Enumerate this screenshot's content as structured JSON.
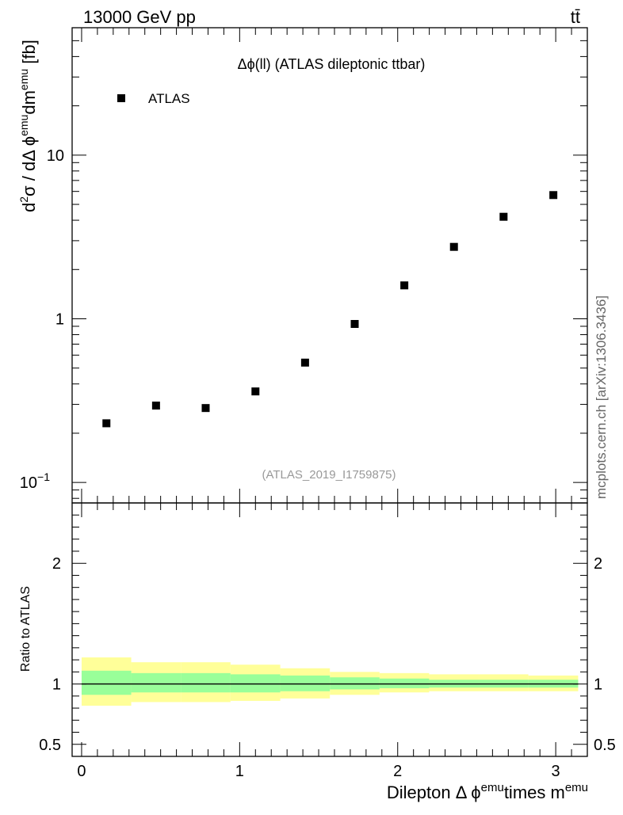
{
  "header": {
    "energy_label": "13000 GeV pp",
    "process_label": "tt̄"
  },
  "side_label": "mcplots.cern.ch [arXiv:1306.3436]",
  "chart_data": [
    {
      "type": "scatter",
      "title": "Δϕ(ll) (ATLAS dileptonic ttbar)",
      "analysis_label": "(ATLAS_2019_I1759875)",
      "ylabel": "d²σ / dΔ ϕ^emu dm^emu [fb]",
      "ylabel_parts": {
        "d": "d",
        "sup2": "2",
        "mid": "σ / dΔ ϕ",
        "sup_emu": "emu",
        "dm": "dm",
        "unit": " [fb]"
      },
      "yscale": "log",
      "ylim": [
        0.075,
        60
      ],
      "xlim": [
        -0.06,
        3.2
      ],
      "yticks": [
        {
          "v": 0.1,
          "base": "10",
          "exp": "−1"
        },
        {
          "v": 1,
          "base": "1",
          "exp": ""
        },
        {
          "v": 10,
          "base": "10",
          "exp": ""
        }
      ],
      "legend": "top-left",
      "series": [
        {
          "name": "ATLAS",
          "color": "#000000",
          "marker": "square",
          "x": [
            0.157,
            0.471,
            0.785,
            1.1,
            1.414,
            1.728,
            2.042,
            2.356,
            2.67,
            2.985
          ],
          "y": [
            0.23,
            0.295,
            0.285,
            0.36,
            0.54,
            0.93,
            1.6,
            2.75,
            4.2,
            5.7
          ]
        }
      ]
    },
    {
      "type": "area",
      "ylabel": "Ratio to ATLAS",
      "xlabel": "Dilepton Δ ϕ^emu times m^emu",
      "xlabel_parts": {
        "a": "Dilepton Δ ϕ",
        "sup1": "emu",
        "b": "times m",
        "sup2": "emu"
      },
      "ylim": [
        0.4,
        2.5
      ],
      "xlim": [
        -0.06,
        3.2
      ],
      "yticks": [
        {
          "v": 0.5,
          "label": "0.5"
        },
        {
          "v": 1,
          "label": "1"
        },
        {
          "v": 2,
          "label": "2"
        }
      ],
      "xticks": [
        {
          "v": 0,
          "label": "0"
        },
        {
          "v": 1,
          "label": "1"
        },
        {
          "v": 2,
          "label": "2"
        },
        {
          "v": 3,
          "label": "3"
        }
      ],
      "reference_line": 1.0,
      "band_edges": [
        0.0,
        0.314,
        0.628,
        0.942,
        1.257,
        1.571,
        1.885,
        2.199,
        2.513,
        2.827,
        3.142
      ],
      "yellow_band": {
        "color": "#ffff99",
        "lo": [
          0.82,
          0.85,
          0.85,
          0.86,
          0.88,
          0.91,
          0.93,
          0.94,
          0.94,
          0.94
        ],
        "hi": [
          1.22,
          1.18,
          1.18,
          1.16,
          1.13,
          1.1,
          1.09,
          1.08,
          1.08,
          1.07
        ]
      },
      "green_band": {
        "color": "#99ff99",
        "lo": [
          0.91,
          0.93,
          0.93,
          0.93,
          0.94,
          0.955,
          0.965,
          0.97,
          0.97,
          0.97
        ],
        "hi": [
          1.11,
          1.09,
          1.09,
          1.08,
          1.07,
          1.055,
          1.045,
          1.035,
          1.035,
          1.035
        ]
      }
    }
  ]
}
